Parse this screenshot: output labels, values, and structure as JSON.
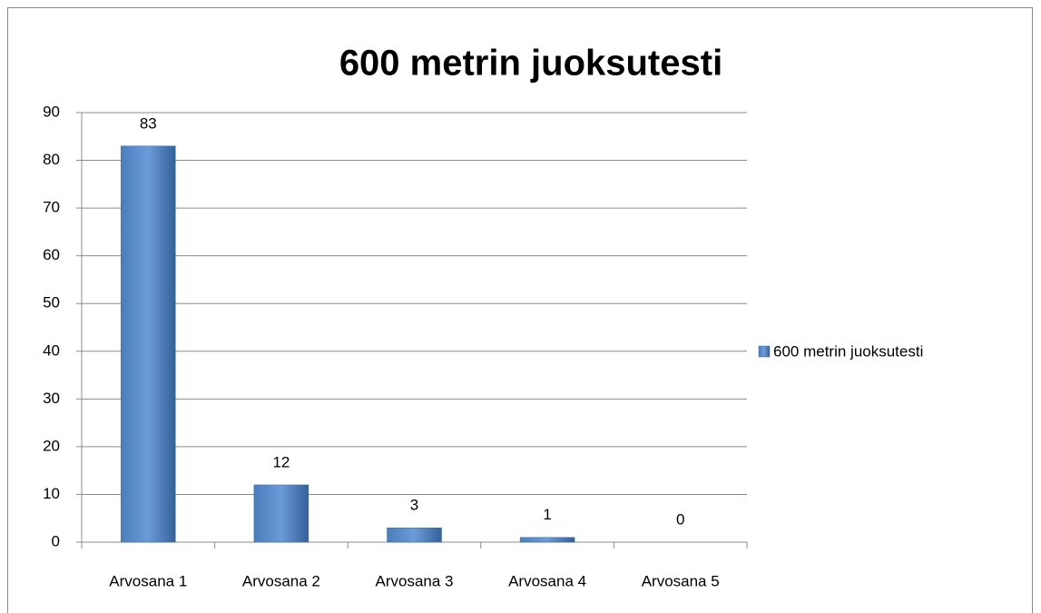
{
  "chart_data": {
    "type": "bar",
    "title": "600 metrin juoksutesti",
    "categories": [
      "Arvosana 1",
      "Arvosana 2",
      "Arvosana 3",
      "Arvosana 4",
      "Arvosana 5"
    ],
    "series": [
      {
        "name": "600 metrin juoksutesti",
        "color": "#4a7ebb",
        "values": [
          83,
          12,
          3,
          1,
          0
        ]
      }
    ],
    "ylim": [
      0,
      90
    ],
    "yticks": [
      0,
      10,
      20,
      30,
      40,
      50,
      60,
      70,
      80,
      90
    ],
    "grid": true,
    "legend": "right"
  }
}
